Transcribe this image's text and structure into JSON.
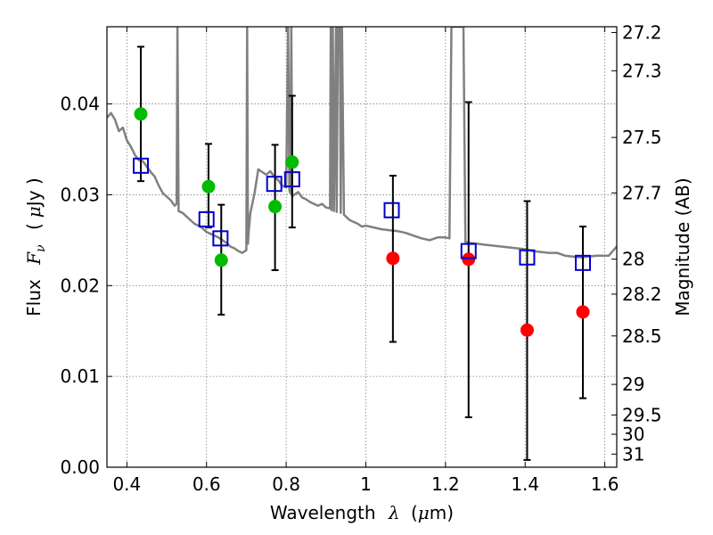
{
  "chart_data": {
    "type": "scatter",
    "xlabel_text": "Wavelength",
    "xlabel_symbol": "λ",
    "xlabel_unit_prefix": "(",
    "xlabel_unit_mu": "μ",
    "xlabel_unit_suffix": "m)",
    "ylabel_text": "Flux",
    "ylabel_symbol": "F",
    "ylabel_subscript": "ν",
    "ylabel_unit_prefix": "(",
    "ylabel_unit_mu": "μ",
    "ylabel_unit_suffix": "Jy )",
    "y2label": "Magnitude (AB)",
    "xlim": [
      0.35,
      1.63
    ],
    "ylim": [
      0.0,
      0.0485
    ],
    "grid": true,
    "xticks": [
      {
        "value": 0.4,
        "label": "0.4"
      },
      {
        "value": 0.6,
        "label": "0.6"
      },
      {
        "value": 0.8,
        "label": "0.8"
      },
      {
        "value": 1.0,
        "label": "1"
      },
      {
        "value": 1.2,
        "label": "1.2"
      },
      {
        "value": 1.4,
        "label": "1.4"
      },
      {
        "value": 1.6,
        "label": "1.6"
      }
    ],
    "yticks": [
      {
        "value": 0.0,
        "label": "0.00"
      },
      {
        "value": 0.01,
        "label": "0.01"
      },
      {
        "value": 0.02,
        "label": "0.02"
      },
      {
        "value": 0.03,
        "label": "0.03"
      },
      {
        "value": 0.04,
        "label": "0.04"
      }
    ],
    "magticks": [
      {
        "value": 27.2,
        "label": "27.2"
      },
      {
        "value": 27.3,
        "label": "27.3"
      },
      {
        "value": 27.5,
        "label": "27.5"
      },
      {
        "value": 27.7,
        "label": "27.7"
      },
      {
        "value": 28.0,
        "label": "28"
      },
      {
        "value": 28.2,
        "label": "28.2"
      },
      {
        "value": 28.5,
        "label": "28.5"
      },
      {
        "value": 29.0,
        "label": "29"
      },
      {
        "value": 29.5,
        "label": "29.5"
      },
      {
        "value": 30.0,
        "label": "30"
      },
      {
        "value": 31.0,
        "label": "31"
      }
    ],
    "series": [
      {
        "name": "model_spectrum",
        "type": "line",
        "color": "#808080",
        "x": [
          0.35,
          0.36,
          0.37,
          0.38,
          0.39,
          0.4,
          0.41,
          0.42,
          0.43,
          0.44,
          0.45,
          0.46,
          0.47,
          0.48,
          0.49,
          0.5,
          0.51,
          0.52,
          0.525,
          0.527,
          0.53,
          0.54,
          0.55,
          0.56,
          0.57,
          0.58,
          0.59,
          0.6,
          0.61,
          0.62,
          0.63,
          0.64,
          0.65,
          0.66,
          0.67,
          0.68,
          0.69,
          0.7,
          0.702,
          0.704,
          0.706,
          0.71,
          0.72,
          0.73,
          0.74,
          0.75,
          0.76,
          0.77,
          0.78,
          0.79,
          0.8,
          0.805,
          0.808,
          0.81,
          0.813,
          0.815,
          0.82,
          0.83,
          0.84,
          0.85,
          0.86,
          0.87,
          0.88,
          0.89,
          0.9,
          0.91,
          0.912,
          0.914,
          0.917,
          0.92,
          0.925,
          0.927,
          0.93,
          0.935,
          0.937,
          0.94,
          0.945,
          0.95,
          0.96,
          0.97,
          0.98,
          0.99,
          1.0,
          1.02,
          1.04,
          1.06,
          1.08,
          1.1,
          1.12,
          1.14,
          1.16,
          1.18,
          1.2,
          1.21,
          1.215,
          1.22,
          1.24,
          1.245,
          1.25,
          1.26,
          1.28,
          1.3,
          1.32,
          1.34,
          1.36,
          1.38,
          1.4,
          1.42,
          1.44,
          1.46,
          1.48,
          1.5,
          1.52,
          1.54,
          1.56,
          1.58,
          1.6,
          1.61,
          1.62,
          1.63
        ],
        "y": [
          0.0385,
          0.039,
          0.0383,
          0.037,
          0.0374,
          0.036,
          0.0353,
          0.0344,
          0.0338,
          0.0337,
          0.0331,
          0.0325,
          0.032,
          0.031,
          0.0302,
          0.0298,
          0.0294,
          0.0288,
          0.029,
          0.0485,
          0.0282,
          0.028,
          0.0276,
          0.0272,
          0.0268,
          0.0266,
          0.0263,
          0.0259,
          0.0257,
          0.0255,
          0.0253,
          0.025,
          0.0247,
          0.0243,
          0.0241,
          0.0238,
          0.0236,
          0.0239,
          0.0485,
          0.0246,
          0.026,
          0.028,
          0.03,
          0.0328,
          0.0325,
          0.0322,
          0.0326,
          0.032,
          0.0316,
          0.031,
          0.0308,
          0.0485,
          0.0305,
          0.0302,
          0.0485,
          0.0298,
          0.03,
          0.0303,
          0.0297,
          0.0295,
          0.0292,
          0.029,
          0.0288,
          0.029,
          0.0286,
          0.0285,
          0.0485,
          0.0283,
          0.0485,
          0.0282,
          0.0485,
          0.0281,
          0.0485,
          0.0485,
          0.028,
          0.0485,
          0.0278,
          0.0276,
          0.0272,
          0.027,
          0.0268,
          0.0265,
          0.0266,
          0.0264,
          0.0262,
          0.0261,
          0.026,
          0.0258,
          0.0255,
          0.0252,
          0.025,
          0.0253,
          0.0253,
          0.0252,
          0.0485,
          0.0485,
          0.0485,
          0.0485,
          0.0248,
          0.0247,
          0.0246,
          0.0245,
          0.0244,
          0.0243,
          0.0242,
          0.0241,
          0.024,
          0.0238,
          0.0237,
          0.0236,
          0.0236,
          0.0233,
          0.0232,
          0.0231,
          0.0232,
          0.0233,
          0.0233,
          0.0233,
          0.0238,
          0.0243
        ]
      },
      {
        "name": "green_points",
        "type": "scatter",
        "color": "#00bb00",
        "x": [
          0.435,
          0.605,
          0.637,
          0.772,
          0.815
        ],
        "y": [
          0.0389,
          0.0309,
          0.0228,
          0.0287,
          0.0336
        ]
      },
      {
        "name": "red_points",
        "type": "scatter",
        "color": "#ff0000",
        "x": [
          1.068,
          1.258,
          1.405,
          1.545
        ],
        "y": [
          0.023,
          0.0229,
          0.0151,
          0.0171
        ]
      },
      {
        "name": "model_photometry",
        "type": "scatter",
        "marker": "open-square",
        "color": "#0000cc",
        "x": [
          0.435,
          0.6,
          0.635,
          0.77,
          0.815,
          1.065,
          1.258,
          1.405,
          1.545
        ],
        "y": [
          0.0332,
          0.0273,
          0.0252,
          0.0312,
          0.0317,
          0.0283,
          0.0238,
          0.0231,
          0.0225
        ]
      }
    ],
    "errorbars": [
      {
        "x": 0.435,
        "low": 0.0315,
        "high": 0.0463
      },
      {
        "x": 0.605,
        "low": 0.0264,
        "high": 0.0356
      },
      {
        "x": 0.637,
        "low": 0.0168,
        "high": 0.0289
      },
      {
        "x": 0.772,
        "low": 0.0217,
        "high": 0.0355
      },
      {
        "x": 0.815,
        "low": 0.0264,
        "high": 0.0409
      },
      {
        "x": 1.068,
        "low": 0.0138,
        "high": 0.0321
      },
      {
        "x": 1.258,
        "low": 0.0055,
        "high": 0.0402
      },
      {
        "x": 1.405,
        "low": 0.0008,
        "high": 0.0293
      },
      {
        "x": 1.545,
        "low": 0.0076,
        "high": 0.0265
      }
    ]
  }
}
